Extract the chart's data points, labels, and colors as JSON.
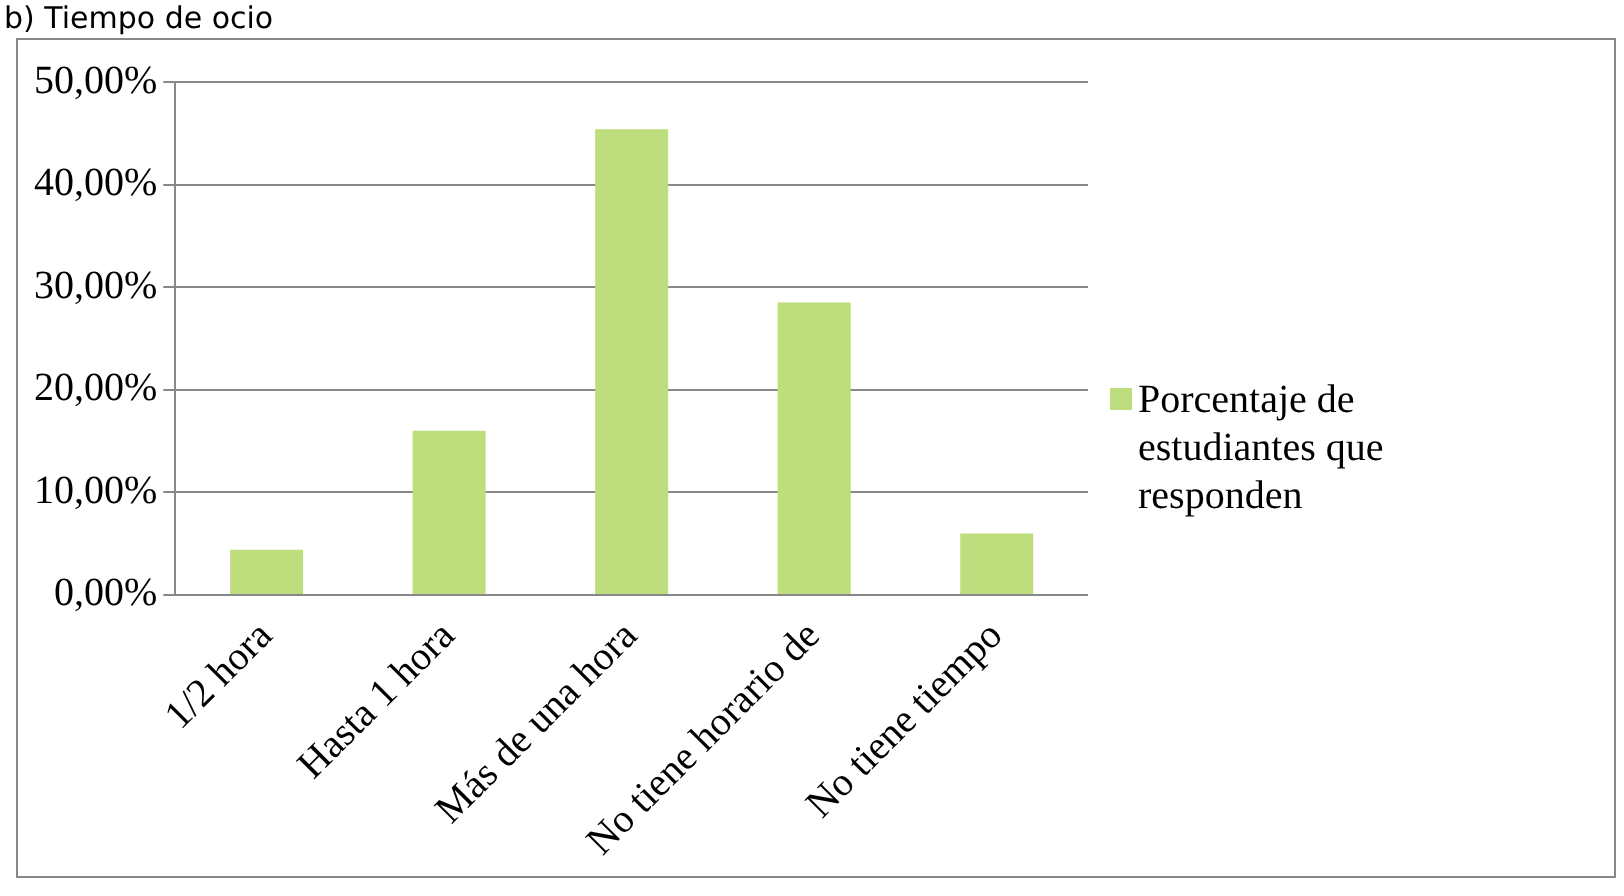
{
  "chart_data": {
    "type": "bar",
    "title": "b) Tiempo de ocio",
    "categories": [
      "1/2 hora",
      "Hasta 1 hora",
      "Más de una hora",
      "No tiene horario de",
      "No tiene tiempo"
    ],
    "series": [
      {
        "name": "Porcentaje de estudiantes que responden",
        "color": "#bedd7d",
        "values": [
          4.4,
          16.0,
          45.4,
          28.5,
          6.0
        ]
      }
    ],
    "ylim": [
      0,
      50
    ],
    "yticks": [
      {
        "value": 0,
        "label": "0,00%"
      },
      {
        "value": 10,
        "label": "10,00%"
      },
      {
        "value": 20,
        "label": "20,00%"
      },
      {
        "value": 30,
        "label": "30,00%"
      },
      {
        "value": 40,
        "label": "40,00%"
      },
      {
        "value": 50,
        "label": "50,00%"
      }
    ],
    "grid": "y",
    "legend": "right"
  }
}
